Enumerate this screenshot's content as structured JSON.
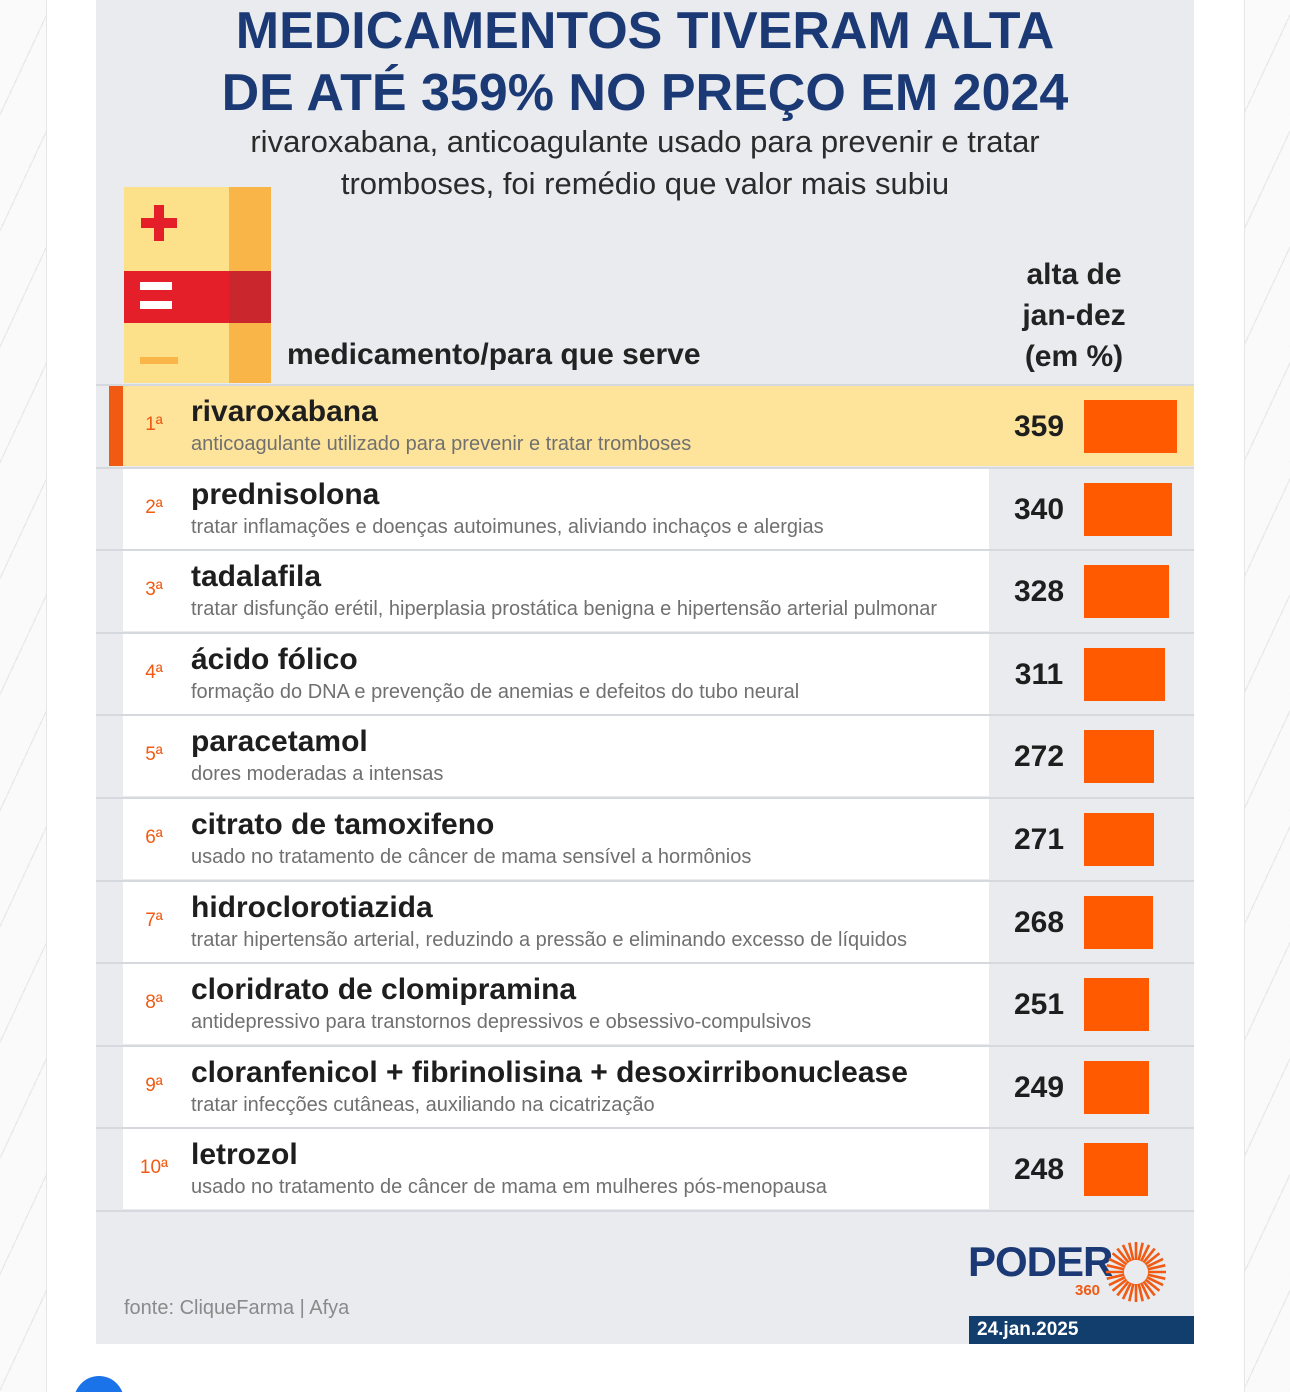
{
  "title_line1": "MEDICAMENTOS TIVERAM ALTA",
  "title_line2": "DE ATÉ 359% NO PREÇO EM 2024",
  "subtitle_line1": "rivaroxabana, anticoagulante usado para prevenir e tratar",
  "subtitle_line2": "tromboses, foi remédio que valor mais subiu",
  "column_headers": {
    "medicine": "medicamento/para que serve",
    "value_line1": "alta de",
    "value_line2": "jan-dez",
    "value_line3": "(em %)"
  },
  "source": "fonte: CliqueFarma | Afya",
  "logo": {
    "word": "PODER",
    "number": "360"
  },
  "date": "24.jan.2025",
  "colors": {
    "title": "#1b3a75",
    "bar": "#ff5a00",
    "rank": "#f05a12",
    "highlight": "#fde49a",
    "date_bar": "#123e6e"
  },
  "icon": "medicine-box-icon",
  "chart_data": {
    "type": "bar",
    "orientation": "horizontal",
    "title": "MEDICAMENTOS TIVERAM ALTA DE ATÉ 359% NO PREÇO EM 2024",
    "subtitle": "rivaroxabana, anticoagulante usado para prevenir e tratar tromboses, foi remédio que valor mais subiu",
    "ylabel": "alta de jan-dez (em %)",
    "xlim": [
      0,
      359
    ],
    "highlight_index": 0,
    "rows": [
      {
        "rank": "1ª",
        "name": "rivaroxabana",
        "description": "anticoagulante utilizado para prevenir e tratar tromboses",
        "value": 359
      },
      {
        "rank": "2ª",
        "name": "prednisolona",
        "description": "tratar inflamações e doenças autoimunes, aliviando inchaços e alergias",
        "value": 340
      },
      {
        "rank": "3ª",
        "name": "tadalafila",
        "description": "tratar disfunção erétil, hiperplasia prostática benigna e hipertensão arterial pulmonar",
        "value": 328
      },
      {
        "rank": "4ª",
        "name": "ácido fólico",
        "description": "formação do DNA e prevenção de anemias e defeitos do tubo neural",
        "value": 311
      },
      {
        "rank": "5ª",
        "name": "paracetamol",
        "description": "dores moderadas a intensas",
        "value": 272
      },
      {
        "rank": "6ª",
        "name": "citrato de tamoxifeno",
        "description": "usado no tratamento de câncer de mama sensível a hormônios",
        "value": 271
      },
      {
        "rank": "7ª",
        "name": "hidroclorotiazida",
        "description": "tratar hipertensão arterial, reduzindo a pressão e eliminando excesso de líquidos",
        "value": 268
      },
      {
        "rank": "8ª",
        "name": "cloridrato de clomipramina",
        "description": "antidepressivo para transtornos depressivos e obsessivo-compulsivos",
        "value": 251
      },
      {
        "rank": "9ª",
        "name": "cloranfenicol + fibrinolisina + desoxirribonuclease",
        "description": "tratar infecções cutâneas, auxiliando na cicatrização",
        "value": 249
      },
      {
        "rank": "10ª",
        "name": "letrozol",
        "description": "usado no tratamento de câncer de mama em mulheres pós-menopausa",
        "value": 248
      }
    ]
  }
}
